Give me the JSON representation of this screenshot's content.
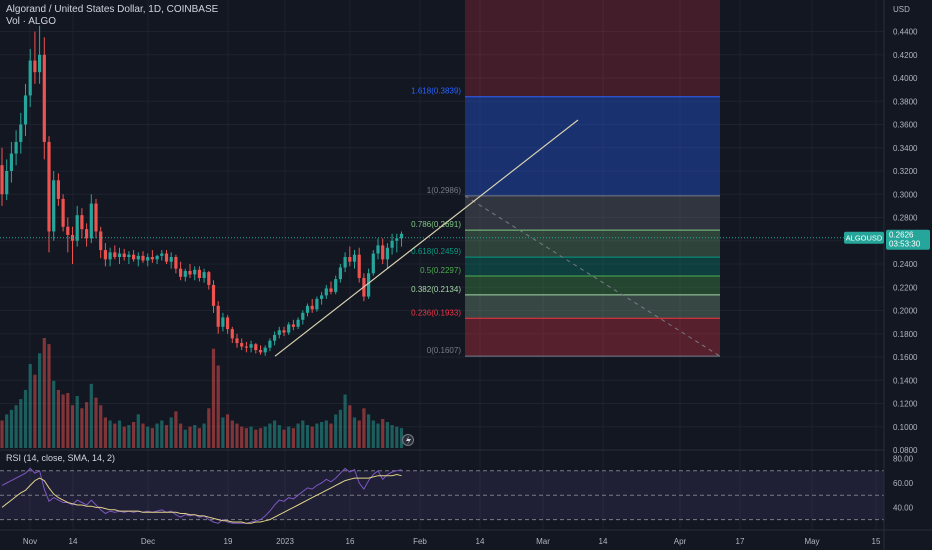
{
  "header": {
    "symbol_line": "Algorand / United States Dollar, 1D, COINBASE",
    "volume_line": "Vol · ALGO"
  },
  "rsi_legend": "RSI (14, close, SMA, 14, 2)",
  "price_axis_label": "USD",
  "price_tag": {
    "symbol": "ALGOUSD",
    "price": "0.2626",
    "countdown": "03:53:30"
  },
  "colors": {
    "up": "#26a69a",
    "down": "#ef5350",
    "background": "#131722",
    "rsi_line": "#7e57c2",
    "rsi_ma": "#e2d38a"
  },
  "chart_data": [
    {
      "type": "candlestick",
      "title": "Algorand / United States Dollar, 1D, COINBASE",
      "y_axis": {
        "unit": "USD",
        "ticks": [
          0.08,
          0.1,
          0.12,
          0.14,
          0.16,
          0.18,
          0.2,
          0.22,
          0.24,
          0.26,
          0.28,
          0.3,
          0.32,
          0.34,
          0.36,
          0.38,
          0.4,
          0.42,
          0.44
        ],
        "ylim": [
          0.07,
          0.45
        ]
      },
      "x_axis": {
        "ticks": [
          "Nov",
          "14",
          "Dec",
          "19",
          "2023",
          "16",
          "Feb",
          "14",
          "Mar",
          "14",
          "Apr",
          "17",
          "May",
          "15"
        ]
      },
      "ohlc_approx": [
        [
          0.325,
          0.34,
          0.29,
          0.3
        ],
        [
          0.3,
          0.33,
          0.295,
          0.32
        ],
        [
          0.32,
          0.345,
          0.31,
          0.335
        ],
        [
          0.335,
          0.355,
          0.325,
          0.345
        ],
        [
          0.345,
          0.37,
          0.335,
          0.36
        ],
        [
          0.36,
          0.395,
          0.35,
          0.385
        ],
        [
          0.385,
          0.425,
          0.375,
          0.415
        ],
        [
          0.415,
          0.44,
          0.395,
          0.405
        ],
        [
          0.405,
          0.445,
          0.395,
          0.42
        ],
        [
          0.42,
          0.435,
          0.33,
          0.345
        ],
        [
          0.345,
          0.35,
          0.25,
          0.268
        ],
        [
          0.268,
          0.32,
          0.26,
          0.312
        ],
        [
          0.312,
          0.318,
          0.29,
          0.296
        ],
        [
          0.296,
          0.3,
          0.268,
          0.272
        ],
        [
          0.272,
          0.28,
          0.25,
          0.265
        ],
        [
          0.265,
          0.272,
          0.24,
          0.26
        ],
        [
          0.26,
          0.29,
          0.255,
          0.282
        ],
        [
          0.282,
          0.288,
          0.262,
          0.27
        ],
        [
          0.27,
          0.275,
          0.255,
          0.262
        ],
        [
          0.262,
          0.3,
          0.258,
          0.292
        ],
        [
          0.292,
          0.296,
          0.262,
          0.268
        ],
        [
          0.268,
          0.272,
          0.245,
          0.252
        ],
        [
          0.252,
          0.258,
          0.238,
          0.244
        ],
        [
          0.244,
          0.254,
          0.238,
          0.25
        ],
        [
          0.25,
          0.256,
          0.244,
          0.246
        ],
        [
          0.246,
          0.254,
          0.24,
          0.249
        ],
        [
          0.249,
          0.253,
          0.243,
          0.246
        ],
        [
          0.246,
          0.251,
          0.24,
          0.248
        ],
        [
          0.248,
          0.252,
          0.242,
          0.244
        ],
        [
          0.244,
          0.25,
          0.238,
          0.247
        ],
        [
          0.247,
          0.251,
          0.241,
          0.243
        ],
        [
          0.243,
          0.249,
          0.238,
          0.246
        ],
        [
          0.246,
          0.252,
          0.241,
          0.244
        ],
        [
          0.244,
          0.248,
          0.24,
          0.247
        ],
        [
          0.247,
          0.252,
          0.243,
          0.249
        ],
        [
          0.249,
          0.252,
          0.24,
          0.242
        ],
        [
          0.242,
          0.25,
          0.236,
          0.246
        ],
        [
          0.246,
          0.248,
          0.232,
          0.236
        ],
        [
          0.236,
          0.242,
          0.226,
          0.229
        ],
        [
          0.229,
          0.236,
          0.225,
          0.234
        ],
        [
          0.234,
          0.24,
          0.228,
          0.231
        ],
        [
          0.231,
          0.238,
          0.226,
          0.235
        ],
        [
          0.235,
          0.238,
          0.225,
          0.228
        ],
        [
          0.228,
          0.236,
          0.224,
          0.233
        ],
        [
          0.233,
          0.234,
          0.218,
          0.222
        ],
        [
          0.222,
          0.226,
          0.198,
          0.204
        ],
        [
          0.204,
          0.208,
          0.18,
          0.186
        ],
        [
          0.186,
          0.198,
          0.182,
          0.194
        ],
        [
          0.194,
          0.196,
          0.18,
          0.184
        ],
        [
          0.184,
          0.186,
          0.172,
          0.176
        ],
        [
          0.176,
          0.18,
          0.168,
          0.172
        ],
        [
          0.172,
          0.176,
          0.166,
          0.169
        ],
        [
          0.169,
          0.173,
          0.164,
          0.168
        ],
        [
          0.168,
          0.174,
          0.164,
          0.171
        ],
        [
          0.171,
          0.172,
          0.163,
          0.166
        ],
        [
          0.166,
          0.17,
          0.162,
          0.164
        ],
        [
          0.164,
          0.17,
          0.161,
          0.168
        ],
        [
          0.168,
          0.176,
          0.165,
          0.174
        ],
        [
          0.174,
          0.182,
          0.17,
          0.179
        ],
        [
          0.179,
          0.186,
          0.176,
          0.183
        ],
        [
          0.183,
          0.186,
          0.178,
          0.181
        ],
        [
          0.181,
          0.19,
          0.179,
          0.188
        ],
        [
          0.188,
          0.192,
          0.183,
          0.186
        ],
        [
          0.186,
          0.194,
          0.184,
          0.192
        ],
        [
          0.192,
          0.2,
          0.188,
          0.198
        ],
        [
          0.198,
          0.206,
          0.195,
          0.204
        ],
        [
          0.204,
          0.21,
          0.198,
          0.201
        ],
        [
          0.201,
          0.212,
          0.199,
          0.21
        ],
        [
          0.21,
          0.216,
          0.205,
          0.213
        ],
        [
          0.213,
          0.222,
          0.21,
          0.219
        ],
        [
          0.219,
          0.225,
          0.214,
          0.216
        ],
        [
          0.216,
          0.23,
          0.214,
          0.227
        ],
        [
          0.227,
          0.24,
          0.224,
          0.237
        ],
        [
          0.237,
          0.25,
          0.233,
          0.246
        ],
        [
          0.246,
          0.255,
          0.238,
          0.242
        ],
        [
          0.242,
          0.252,
          0.236,
          0.248
        ],
        [
          0.248,
          0.254,
          0.224,
          0.228
        ],
        [
          0.228,
          0.232,
          0.208,
          0.212
        ],
        [
          0.212,
          0.236,
          0.21,
          0.232
        ],
        [
          0.232,
          0.252,
          0.23,
          0.249
        ],
        [
          0.249,
          0.262,
          0.244,
          0.256
        ],
        [
          0.256,
          0.262,
          0.24,
          0.244
        ],
        [
          0.244,
          0.258,
          0.236,
          0.254
        ],
        [
          0.254,
          0.266,
          0.248,
          0.26
        ],
        [
          0.26,
          0.266,
          0.25,
          0.262
        ],
        [
          0.262,
          0.268,
          0.255,
          0.266
        ]
      ],
      "volume_approx": [
        18,
        22,
        25,
        28,
        32,
        38,
        55,
        48,
        62,
        72,
        68,
        44,
        38,
        35,
        36,
        28,
        34,
        26,
        30,
        42,
        33,
        28,
        20,
        18,
        16,
        18,
        14,
        15,
        17,
        22,
        16,
        14,
        13,
        16,
        18,
        15,
        20,
        24,
        16,
        12,
        14,
        15,
        13,
        16,
        26,
        65,
        54,
        20,
        22,
        18,
        16,
        14,
        13,
        14,
        12,
        13,
        14,
        16,
        18,
        15,
        12,
        14,
        13,
        16,
        18,
        15,
        14,
        16,
        17,
        18,
        16,
        22,
        25,
        35,
        28,
        20,
        18,
        26,
        22,
        18,
        16,
        19,
        17,
        15,
        14,
        13
      ]
    },
    {
      "type": "fibonacci_retracement",
      "levels": [
        {
          "label": "1.618(0.3839)",
          "ratio": 1.618,
          "value": 0.3839,
          "color": "#2962ff"
        },
        {
          "label": "1(0.2986)",
          "ratio": 1,
          "value": 0.2986,
          "color": "#787b86"
        },
        {
          "label": "0.786(0.2691)",
          "ratio": 0.786,
          "value": 0.2691,
          "color": "#81c784"
        },
        {
          "label": "0.618(0.2459)",
          "ratio": 0.618,
          "value": 0.2459,
          "color": "#089981"
        },
        {
          "label": "0.5(0.2297)",
          "ratio": 0.5,
          "value": 0.2297,
          "color": "#4caf50"
        },
        {
          "label": "0.382(0.2134)",
          "ratio": 0.382,
          "value": 0.2134,
          "color": "#a5d6a7"
        },
        {
          "label": "0.236(0.1933)",
          "ratio": 0.236,
          "value": 0.1933,
          "color": "#f23645"
        },
        {
          "label": "0(0.1607)",
          "ratio": 0,
          "value": 0.1607,
          "color": "#787b86"
        }
      ]
    },
    {
      "type": "line",
      "title": "RSI (14, close, SMA, 14, 2)",
      "y_axis": {
        "ticks": [
          40.0,
          60.0,
          80.0
        ],
        "ylim": [
          25,
          85
        ]
      },
      "bands": [
        30,
        50,
        70
      ],
      "rsi_approx": [
        58,
        60,
        62,
        64,
        66,
        68,
        72,
        68,
        70,
        55,
        45,
        48,
        46,
        44,
        44,
        42,
        46,
        44,
        42,
        46,
        42,
        38,
        35,
        37,
        36,
        37,
        36,
        37,
        36,
        37,
        36,
        37,
        36,
        37,
        38,
        36,
        37,
        34,
        32,
        34,
        33,
        34,
        32,
        33,
        30,
        28,
        27,
        30,
        28,
        27,
        27,
        27,
        27,
        28,
        29,
        30,
        33,
        37,
        42,
        46,
        45,
        48,
        47,
        50,
        53,
        56,
        55,
        58,
        60,
        63,
        61,
        64,
        68,
        72,
        69,
        71,
        60,
        55,
        62,
        67,
        70,
        63,
        67,
        69,
        70,
        71
      ],
      "rsi_ma_approx": [
        40,
        43,
        46,
        49,
        52,
        54,
        58,
        62,
        64,
        62,
        56,
        51,
        48,
        46,
        44,
        43,
        42,
        42,
        41,
        41,
        40,
        40,
        39,
        38,
        38,
        37,
        37,
        37,
        37,
        37,
        36,
        36,
        36,
        36,
        36,
        36,
        36,
        36,
        35,
        35,
        34,
        34,
        33,
        33,
        32,
        31,
        30,
        29,
        29,
        28,
        28,
        28,
        27,
        27,
        28,
        28,
        29,
        30,
        32,
        34,
        36,
        38,
        40,
        42,
        44,
        46,
        48,
        50,
        52,
        54,
        56,
        58,
        60,
        62,
        63,
        64,
        64,
        64,
        64,
        65,
        66,
        66,
        66,
        66,
        67,
        66
      ]
    }
  ]
}
